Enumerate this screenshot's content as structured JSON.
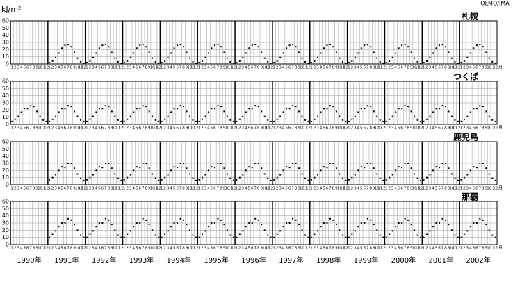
{
  "chart_data": {
    "type": "scatter",
    "unit_label": "kJ/m²",
    "source": "OLMO/JMA",
    "ylim": [
      0,
      60
    ],
    "yticks": [
      0,
      10,
      20,
      30,
      40,
      50,
      60
    ],
    "grid": true,
    "color": "#000000",
    "months": [
      "1",
      "2",
      "3",
      "4",
      "5",
      "6",
      "7",
      "8",
      "9",
      "10",
      "11",
      "12"
    ],
    "month_unit": "月",
    "years": [
      "1990年",
      "1991年",
      "1992年",
      "1993年",
      "1994年",
      "1995年",
      "1996年",
      "1997年",
      "1998年",
      "1999年",
      "2000年",
      "2001年",
      "2002年"
    ],
    "panels": [
      {
        "name": "札幌",
        "values": [
          [
            null,
            null,
            null,
            null,
            null,
            null,
            null,
            null,
            null,
            null,
            null,
            null
          ],
          [
            2,
            4,
            9,
            15,
            22,
            26,
            27,
            24,
            16,
            8,
            3,
            1
          ],
          [
            2,
            4,
            9,
            15,
            22,
            26,
            27,
            24,
            16,
            8,
            3,
            1
          ],
          [
            2,
            4,
            9,
            15,
            22,
            26,
            27,
            24,
            16,
            8,
            3,
            1
          ],
          [
            2,
            4,
            9,
            15,
            22,
            26,
            27,
            24,
            16,
            8,
            3,
            1
          ],
          [
            2,
            4,
            9,
            15,
            22,
            26,
            27,
            24,
            16,
            8,
            3,
            1
          ],
          [
            2,
            4,
            9,
            15,
            22,
            26,
            27,
            24,
            16,
            8,
            3,
            1
          ],
          [
            2,
            4,
            9,
            15,
            22,
            26,
            27,
            24,
            16,
            8,
            3,
            1
          ],
          [
            2,
            4,
            9,
            15,
            22,
            26,
            27,
            24,
            16,
            8,
            3,
            1
          ],
          [
            2,
            4,
            9,
            15,
            22,
            26,
            27,
            24,
            16,
            8,
            3,
            1
          ],
          [
            2,
            4,
            9,
            15,
            22,
            26,
            27,
            24,
            16,
            8,
            3,
            1
          ],
          [
            2,
            4,
            9,
            15,
            22,
            26,
            27,
            24,
            16,
            8,
            3,
            1
          ],
          [
            2,
            4,
            9,
            15,
            22,
            26,
            27,
            24,
            16,
            8,
            3,
            1
          ]
        ]
      },
      {
        "name": "つくば",
        "values": [
          [
            4,
            7,
            11,
            17,
            22,
            22,
            26,
            25,
            18,
            11,
            6,
            4
          ],
          [
            4,
            7,
            11,
            17,
            22,
            22,
            26,
            25,
            18,
            11,
            6,
            4
          ],
          [
            4,
            7,
            11,
            17,
            22,
            22,
            26,
            25,
            18,
            11,
            6,
            4
          ],
          [
            4,
            7,
            11,
            17,
            22,
            22,
            26,
            25,
            18,
            11,
            6,
            4
          ],
          [
            4,
            7,
            11,
            17,
            22,
            22,
            26,
            25,
            18,
            11,
            6,
            4
          ],
          [
            4,
            7,
            11,
            17,
            22,
            22,
            26,
            25,
            18,
            11,
            6,
            4
          ],
          [
            4,
            7,
            11,
            17,
            22,
            22,
            26,
            25,
            18,
            11,
            6,
            4
          ],
          [
            4,
            7,
            11,
            17,
            22,
            22,
            26,
            25,
            18,
            11,
            6,
            4
          ],
          [
            4,
            7,
            11,
            17,
            22,
            22,
            26,
            25,
            18,
            11,
            6,
            4
          ],
          [
            4,
            7,
            11,
            17,
            22,
            22,
            26,
            25,
            18,
            11,
            6,
            4
          ],
          [
            4,
            7,
            11,
            17,
            22,
            22,
            26,
            25,
            18,
            11,
            6,
            4
          ],
          [
            4,
            7,
            11,
            17,
            22,
            22,
            26,
            25,
            18,
            11,
            6,
            4
          ],
          [
            4,
            7,
            11,
            17,
            22,
            22,
            26,
            25,
            18,
            11,
            6,
            4
          ]
        ]
      },
      {
        "name": "鹿児島",
        "values": [
          [
            null,
            null,
            null,
            null,
            null,
            null,
            null,
            null,
            null,
            null,
            null,
            null
          ],
          [
            7,
            10,
            14,
            20,
            25,
            24,
            30,
            30,
            23,
            15,
            9,
            6
          ],
          [
            7,
            10,
            14,
            20,
            25,
            24,
            30,
            30,
            23,
            15,
            9,
            6
          ],
          [
            7,
            10,
            14,
            20,
            25,
            24,
            30,
            30,
            23,
            15,
            9,
            6
          ],
          [
            7,
            10,
            14,
            20,
            25,
            24,
            30,
            30,
            23,
            15,
            9,
            6
          ],
          [
            7,
            10,
            14,
            20,
            25,
            24,
            30,
            30,
            23,
            15,
            9,
            6
          ],
          [
            7,
            10,
            14,
            20,
            25,
            24,
            30,
            30,
            23,
            15,
            9,
            6
          ],
          [
            7,
            10,
            14,
            20,
            25,
            24,
            30,
            30,
            23,
            15,
            9,
            6
          ],
          [
            7,
            10,
            14,
            20,
            25,
            24,
            30,
            30,
            23,
            15,
            9,
            6
          ],
          [
            7,
            10,
            14,
            20,
            25,
            24,
            30,
            30,
            23,
            15,
            9,
            6
          ],
          [
            7,
            10,
            14,
            20,
            25,
            24,
            30,
            30,
            23,
            15,
            9,
            6
          ],
          [
            7,
            10,
            14,
            20,
            25,
            24,
            30,
            30,
            23,
            15,
            9,
            6
          ],
          [
            7,
            10,
            14,
            20,
            25,
            24,
            30,
            30,
            23,
            15,
            9,
            6
          ]
        ]
      },
      {
        "name": "那覇",
        "values": [
          [
            null,
            null,
            null,
            null,
            null,
            null,
            null,
            null,
            null,
            null,
            null,
            null
          ],
          [
            10,
            14,
            19,
            25,
            30,
            30,
            36,
            34,
            28,
            20,
            13,
            10
          ],
          [
            10,
            14,
            19,
            25,
            30,
            30,
            36,
            34,
            28,
            20,
            13,
            10
          ],
          [
            10,
            14,
            19,
            25,
            30,
            30,
            36,
            34,
            28,
            20,
            13,
            10
          ],
          [
            10,
            14,
            19,
            25,
            30,
            30,
            36,
            34,
            28,
            20,
            13,
            10
          ],
          [
            10,
            14,
            19,
            25,
            30,
            30,
            36,
            34,
            28,
            20,
            13,
            10
          ],
          [
            10,
            14,
            19,
            25,
            30,
            30,
            36,
            34,
            28,
            20,
            13,
            10
          ],
          [
            10,
            14,
            19,
            25,
            30,
            30,
            36,
            34,
            28,
            20,
            13,
            10
          ],
          [
            10,
            14,
            19,
            25,
            30,
            30,
            36,
            34,
            28,
            20,
            13,
            10
          ],
          [
            10,
            14,
            19,
            25,
            30,
            30,
            36,
            34,
            28,
            20,
            13,
            10
          ],
          [
            10,
            14,
            19,
            25,
            30,
            30,
            36,
            34,
            28,
            20,
            13,
            10
          ],
          [
            10,
            14,
            19,
            25,
            30,
            30,
            36,
            34,
            28,
            20,
            13,
            10
          ],
          [
            10,
            14,
            19,
            25,
            30,
            30,
            36,
            34,
            28,
            20,
            13,
            10
          ]
        ]
      }
    ]
  }
}
